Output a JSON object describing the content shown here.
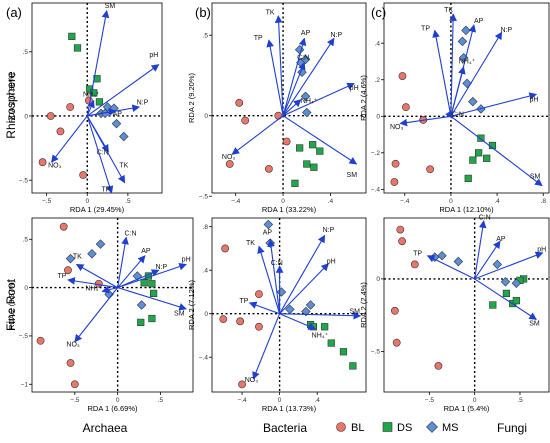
{
  "figure": {
    "panel_letters": [
      "(a)",
      "(b)",
      "(c)"
    ],
    "row_labels": [
      "Rhizosphere",
      "Fine Root"
    ],
    "col_labels": [
      "Archaea",
      "Bacteria",
      "Fungi"
    ],
    "legend": [
      {
        "label": "BL",
        "shape": "circle",
        "color": "#e8766b"
      },
      {
        "label": "DS",
        "shape": "square",
        "color": "#1fa84a"
      },
      {
        "label": "MS",
        "shape": "diamond",
        "color": "#5b8fd6"
      }
    ],
    "arrow_color": "#1f3fd1"
  },
  "chart_data": [
    {
      "id": "archaea-rhizosphere",
      "type": "scatter",
      "xlabel": "RDA 1 (29.45%)",
      "ylabel": "RDA 2 (7.80%)",
      "xlim": [
        -0.68,
        0.92
      ],
      "ylim": [
        -0.6,
        0.88
      ],
      "xticks": [
        -0.5,
        0,
        0.5
      ],
      "yticks": [
        -0.5,
        0,
        0.5
      ],
      "arrows": [
        {
          "name": "SM",
          "x": 0.24,
          "y": 0.82,
          "lx": 0.28,
          "ly": 0.84
        },
        {
          "name": "pH",
          "x": 0.88,
          "y": 0.4,
          "lx": 0.82,
          "ly": 0.46
        },
        {
          "name": "NH₄⁺",
          "x": 0.08,
          "y": 0.12,
          "lx": 0.05,
          "ly": 0.15
        },
        {
          "name": "AP",
          "x": 0.35,
          "y": 0.04,
          "lx": 0.37,
          "ly": 0.0
        },
        {
          "name": "N:P",
          "x": 0.64,
          "y": 0.07,
          "lx": 0.68,
          "ly": 0.09
        },
        {
          "name": "C:N",
          "x": 0.26,
          "y": -0.28,
          "lx": 0.19,
          "ly": -0.3
        },
        {
          "name": "TK",
          "x": 0.46,
          "y": -0.52,
          "lx": 0.45,
          "ly": -0.4
        },
        {
          "name": "TP",
          "x": 0.3,
          "y": -0.6,
          "lx": 0.23,
          "ly": -0.59
        },
        {
          "name": "NO₃",
          "x": -0.44,
          "y": -0.36,
          "lx": -0.4,
          "ly": -0.4
        }
      ],
      "points": {
        "BL": [
          [
            -0.55,
            -0.36
          ],
          [
            -0.45,
            0.0
          ],
          [
            -0.33,
            -0.12
          ],
          [
            -0.21,
            0.07
          ],
          [
            -0.05,
            -0.46
          ],
          [
            0.02,
            0.12
          ]
        ],
        "DS": [
          [
            -0.19,
            0.62
          ],
          [
            -0.12,
            0.53
          ],
          [
            0.03,
            0.21
          ],
          [
            0.08,
            0.18
          ],
          [
            0.12,
            0.29
          ],
          [
            0.15,
            0.11
          ]
        ],
        "MS": [
          [
            0.17,
            0.02
          ],
          [
            0.22,
            0.02
          ],
          [
            0.25,
            0.07
          ],
          [
            0.33,
            0.06
          ],
          [
            0.36,
            -0.06
          ],
          [
            0.45,
            -0.16
          ]
        ]
      }
    },
    {
      "id": "bacteria-rhizosphere",
      "type": "scatter",
      "xlabel": "RDA 1 (33.22%)",
      "ylabel": "RDA 2 (9.20%)",
      "xlim": [
        -0.6,
        0.7
      ],
      "ylim": [
        -0.48,
        0.7
      ],
      "xticks": [
        -0.4,
        0,
        0.4
      ],
      "yticks": [
        -0.5,
        0,
        0.5
      ],
      "arrows": [
        {
          "name": "TK",
          "x": -0.04,
          "y": 0.62,
          "lx": -0.11,
          "ly": 0.63
        },
        {
          "name": "TP",
          "x": -0.12,
          "y": 0.47,
          "lx": -0.21,
          "ly": 0.47
        },
        {
          "name": "AP",
          "x": 0.18,
          "y": 0.48,
          "lx": 0.19,
          "ly": 0.5
        },
        {
          "name": "N:P",
          "x": 0.43,
          "y": 0.48,
          "lx": 0.45,
          "ly": 0.49
        },
        {
          "name": "C:N",
          "x": 0.18,
          "y": 0.33,
          "lx": 0.17,
          "ly": 0.35
        },
        {
          "name": "pH",
          "x": 0.6,
          "y": 0.2,
          "lx": 0.6,
          "ly": 0.16
        },
        {
          "name": "NH₄⁺",
          "x": 0.15,
          "y": 0.1,
          "lx": 0.22,
          "ly": 0.08
        },
        {
          "name": "SM",
          "x": 0.62,
          "y": -0.3,
          "lx": 0.58,
          "ly": -0.38
        },
        {
          "name": "NO₃",
          "x": -0.43,
          "y": -0.24,
          "lx": -0.46,
          "ly": -0.27
        }
      ],
      "points": {
        "BL": [
          [
            -0.45,
            -0.3
          ],
          [
            -0.37,
            0.08
          ],
          [
            -0.32,
            -0.03
          ],
          [
            -0.12,
            -0.33
          ],
          [
            0.03,
            -0.16
          ],
          [
            -0.04,
            0.0
          ]
        ],
        "DS": [
          [
            0.1,
            -0.42
          ],
          [
            0.14,
            -0.2
          ],
          [
            0.2,
            -0.3
          ],
          [
            0.25,
            -0.18
          ],
          [
            0.26,
            -0.32
          ],
          [
            0.31,
            -0.22
          ]
        ],
        "MS": [
          [
            0.14,
            0.41
          ],
          [
            0.15,
            0.33
          ],
          [
            0.19,
            0.35
          ],
          [
            0.16,
            0.27
          ],
          [
            0.19,
            0.12
          ],
          [
            0.2,
            0.02
          ]
        ]
      }
    },
    {
      "id": "fungi-rhizosphere",
      "type": "scatter",
      "xlabel": "RDA 1 (12.10%)",
      "ylabel": "RDA 2 (4.6%)",
      "xlim": [
        -0.58,
        0.85
      ],
      "ylim": [
        -0.42,
        0.62
      ],
      "xticks": [
        -0.4,
        0,
        0.4,
        0.8
      ],
      "yticks": [
        -0.4,
        -0.2,
        0,
        0.2,
        0.4
      ],
      "arrows": [
        {
          "name": "TK",
          "x": 0.02,
          "y": 0.56,
          "lx": -0.02,
          "ly": 0.57
        },
        {
          "name": "TP",
          "x": -0.14,
          "y": 0.47,
          "lx": -0.22,
          "ly": 0.47
        },
        {
          "name": "AP",
          "x": 0.2,
          "y": 0.5,
          "lx": 0.24,
          "ly": 0.51
        },
        {
          "name": "N:P",
          "x": 0.44,
          "y": 0.46,
          "lx": 0.48,
          "ly": 0.46
        },
        {
          "name": "NH₄⁺",
          "x": 0.11,
          "y": 0.27,
          "lx": 0.14,
          "ly": 0.29
        },
        {
          "name": "pH",
          "x": 0.74,
          "y": 0.12,
          "lx": 0.72,
          "ly": 0.08
        },
        {
          "name": "C:N",
          "x": 0.01,
          "y": -0.01,
          "lx": 0.06,
          "ly": 0.0
        },
        {
          "name": "NO₃",
          "x": -0.44,
          "y": -0.04,
          "lx": -0.47,
          "ly": -0.07
        },
        {
          "name": "SM",
          "x": 0.79,
          "y": -0.38,
          "lx": 0.73,
          "ly": -0.34
        }
      ],
      "points": {
        "BL": [
          [
            -0.49,
            -0.36
          ],
          [
            -0.48,
            -0.26
          ],
          [
            -0.42,
            0.22
          ],
          [
            -0.39,
            0.05
          ],
          [
            -0.18,
            -0.29
          ],
          [
            -0.24,
            -0.02
          ]
        ],
        "DS": [
          [
            0.15,
            -0.34
          ],
          [
            0.19,
            -0.24
          ],
          [
            0.24,
            -0.2
          ],
          [
            0.26,
            -0.12
          ],
          [
            0.31,
            -0.23
          ],
          [
            0.36,
            -0.16
          ]
        ],
        "MS": [
          [
            0.13,
            0.47
          ],
          [
            0.1,
            0.41
          ],
          [
            0.11,
            0.32
          ],
          [
            0.14,
            0.18
          ],
          [
            0.19,
            0.08
          ],
          [
            0.26,
            0.04
          ]
        ]
      }
    },
    {
      "id": "archaea-fine-root",
      "type": "scatter",
      "xlabel": "RDA 1 (6.69%)",
      "ylabel": "RDA 2 (3.87%)",
      "xlim": [
        -1.0,
        0.88
      ],
      "ylim": [
        -1.08,
        0.72
      ],
      "xticks": [
        -0.5,
        0,
        0.5
      ],
      "yticks": [
        -1.0,
        -0.5,
        0,
        0.5
      ],
      "arrows": [
        {
          "name": "C:N",
          "x": 0.1,
          "y": 0.52,
          "lx": 0.15,
          "ly": 0.54
        },
        {
          "name": "AP",
          "x": 0.32,
          "y": 0.33,
          "lx": 0.33,
          "ly": 0.36
        },
        {
          "name": "N:P",
          "x": 0.48,
          "y": 0.18,
          "lx": 0.51,
          "ly": 0.19
        },
        {
          "name": "pH",
          "x": 0.8,
          "y": 0.24,
          "lx": 0.8,
          "ly": 0.27
        },
        {
          "name": "TK",
          "x": -0.48,
          "y": 0.24,
          "lx": -0.47,
          "ly": 0.3
        },
        {
          "name": "TP",
          "x": -0.58,
          "y": 0.08,
          "lx": -0.65,
          "ly": 0.1
        },
        {
          "name": "NH₄⁺",
          "x": -0.18,
          "y": -0.04,
          "lx": -0.28,
          "ly": -0.03
        },
        {
          "name": "SM",
          "x": 0.8,
          "y": -0.22,
          "lx": 0.72,
          "ly": -0.29
        },
        {
          "name": "NO₃",
          "x": -0.5,
          "y": -0.56,
          "lx": -0.52,
          "ly": -0.61
        }
      ],
      "points": {
        "BL": [
          [
            -0.63,
            0.63
          ],
          [
            -0.58,
            0.18
          ],
          [
            -0.9,
            -0.55
          ],
          [
            -0.55,
            -0.78
          ],
          [
            -0.5,
            -1.0
          ],
          [
            -0.22,
            0.04
          ]
        ],
        "DS": [
          [
            0.31,
            0.05
          ],
          [
            0.36,
            0.12
          ],
          [
            0.4,
            0.04
          ],
          [
            0.42,
            -0.06
          ],
          [
            0.27,
            -0.36
          ],
          [
            0.4,
            -0.32
          ]
        ],
        "MS": [
          [
            -0.55,
            0.3
          ],
          [
            -0.3,
            0.35
          ],
          [
            -0.2,
            0.45
          ],
          [
            -0.1,
            -0.07
          ],
          [
            0.23,
            0.12
          ],
          [
            0.28,
            -0.18
          ]
        ]
      }
    },
    {
      "id": "bacteria-fine-root",
      "type": "scatter",
      "xlabel": "RDA 1 (13.73%)",
      "ylabel": "RDA 2 (7.12%)",
      "xlim": [
        -0.72,
        0.92
      ],
      "ylim": [
        -0.72,
        0.88
      ],
      "xticks": [
        -0.4,
        0,
        0.4
      ],
      "yticks": [
        -0.4,
        0,
        0.4,
        0.8
      ],
      "arrows": [
        {
          "name": "TK",
          "x": -0.22,
          "y": 0.62,
          "lx": -0.31,
          "ly": 0.63
        },
        {
          "name": "AP",
          "x": -0.1,
          "y": 0.68,
          "lx": -0.13,
          "ly": 0.73
        },
        {
          "name": "N:P",
          "x": 0.48,
          "y": 0.72,
          "lx": 0.52,
          "ly": 0.75
        },
        {
          "name": "C:N",
          "x": 0.0,
          "y": 0.44,
          "lx": -0.03,
          "ly": 0.45
        },
        {
          "name": "pH",
          "x": 0.52,
          "y": 0.46,
          "lx": 0.55,
          "ly": 0.46
        },
        {
          "name": "TP",
          "x": -0.32,
          "y": 0.1,
          "lx": -0.38,
          "ly": 0.1
        },
        {
          "name": "SM",
          "x": 0.86,
          "y": -0.02,
          "lx": 0.8,
          "ly": 0.0
        },
        {
          "name": "NH₄⁺",
          "x": 0.38,
          "y": -0.14,
          "lx": 0.43,
          "ly": -0.22
        },
        {
          "name": "NO₃",
          "x": -0.28,
          "y": -0.6,
          "lx": -0.3,
          "ly": -0.63
        }
      ],
      "points": {
        "BL": [
          [
            -0.4,
            -0.65
          ],
          [
            -0.58,
            0.6
          ],
          [
            -0.6,
            -0.05
          ],
          [
            -0.42,
            -0.07
          ],
          [
            -0.22,
            -0.12
          ],
          [
            -0.22,
            0.18
          ]
        ],
        "DS": [
          [
            0.33,
            -0.1
          ],
          [
            0.36,
            -0.12
          ],
          [
            0.48,
            -0.12
          ],
          [
            0.55,
            -0.27
          ],
          [
            0.68,
            -0.35
          ],
          [
            0.78,
            -0.48
          ]
        ],
        "MS": [
          [
            -0.12,
            0.82
          ],
          [
            -0.1,
            0.65
          ],
          [
            0.02,
            0.2
          ],
          [
            0.11,
            0.04
          ],
          [
            0.28,
            0.02
          ],
          [
            0.33,
            0.08
          ]
        ]
      }
    },
    {
      "id": "fungi-fine-root",
      "type": "scatter",
      "xlabel": "RDA 1 (5.4%)",
      "ylabel": "RDA 2 (2.4%)",
      "xlim": [
        -1.0,
        0.82
      ],
      "ylim": [
        -0.78,
        0.42
      ],
      "xticks": [
        -0.5,
        0,
        0.5
      ],
      "yticks": [
        -0.5,
        0
      ],
      "arrows": [
        {
          "name": "C:N",
          "x": 0.1,
          "y": 0.4,
          "lx": 0.11,
          "ly": 0.41
        },
        {
          "name": "AP",
          "x": 0.28,
          "y": 0.26,
          "lx": 0.29,
          "ly": 0.26
        },
        {
          "name": "pH",
          "x": 0.75,
          "y": 0.18,
          "lx": 0.74,
          "ly": 0.19
        },
        {
          "name": "TP",
          "x": -0.52,
          "y": 0.16,
          "lx": -0.63,
          "ly": 0.16
        },
        {
          "name": "SM",
          "x": 0.68,
          "y": -0.28,
          "lx": 0.66,
          "ly": -0.32
        }
      ],
      "points": {
        "BL": [
          [
            -0.82,
            0.34
          ],
          [
            -0.8,
            0.26
          ],
          [
            -0.88,
            -0.22
          ],
          [
            -0.86,
            -0.44
          ],
          [
            -0.66,
            0.1
          ],
          [
            -0.4,
            -0.6
          ]
        ],
        "DS": [
          [
            0.2,
            -0.18
          ],
          [
            0.35,
            -0.1
          ],
          [
            0.42,
            -0.17
          ],
          [
            0.46,
            -0.15
          ],
          [
            0.54,
            0.0
          ],
          [
            0.5,
            -0.01
          ]
        ],
        "MS": [
          [
            -0.44,
            0.15
          ],
          [
            -0.36,
            0.16
          ],
          [
            -0.18,
            0.12
          ],
          [
            0.25,
            0.1
          ],
          [
            0.34,
            -0.02
          ],
          [
            0.46,
            -0.03
          ]
        ]
      }
    }
  ]
}
